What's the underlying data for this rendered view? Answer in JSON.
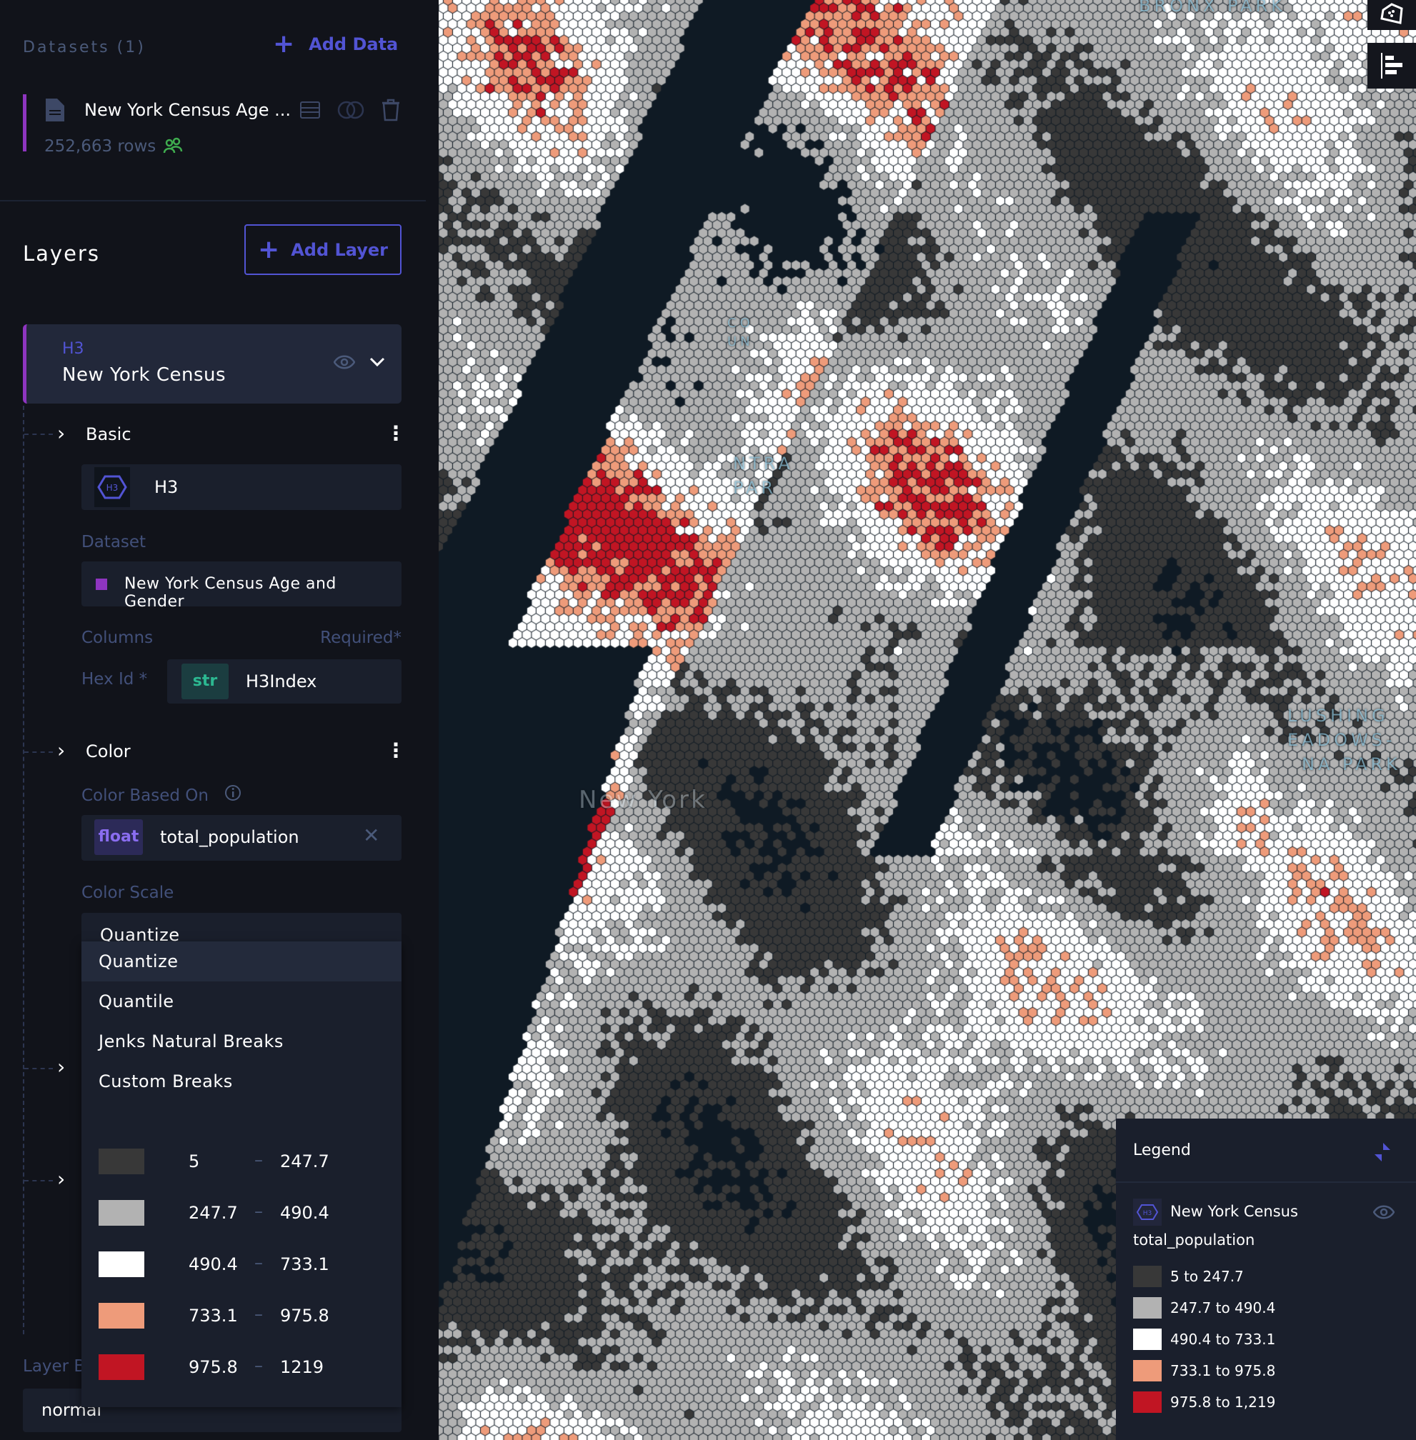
{
  "datasets": {
    "header": "Datasets (1)",
    "add_data_label": "Add Data",
    "items": [
      {
        "name": "New York Census Age ...",
        "rows": "252,663 rows",
        "color": "#8e35c0"
      }
    ]
  },
  "layers": {
    "header": "Layers",
    "add_layer_label": "Add Layer",
    "layer": {
      "type": "H3",
      "name": "New York Census",
      "basic": {
        "section_label": "Basic",
        "layer_type": "H3",
        "layer_type_icon_text": "H3",
        "dataset_label": "Dataset",
        "dataset_value": "New York Census Age and Gender",
        "columns_label": "Columns",
        "required_label": "Required*",
        "hex_id_label": "Hex Id *",
        "hex_id_type": "str",
        "hex_id_value": "H3Index"
      },
      "color": {
        "section_label": "Color",
        "color_based_on_label": "Color Based On",
        "field_type": "float",
        "field_value": "total_population",
        "color_scale_label": "Color Scale",
        "color_scale_value": "Quantize",
        "scale_options": [
          "Quantize",
          "Quantile",
          "Jenks Natural Breaks",
          "Custom Breaks"
        ],
        "breaks": [
          {
            "from": "5",
            "to": "247.7",
            "color": "#383838"
          },
          {
            "from": "247.7",
            "to": "490.4",
            "color": "#b2b2b2"
          },
          {
            "from": "490.4",
            "to": "733.1",
            "color": "#ffffff"
          },
          {
            "from": "733.1",
            "to": "975.8",
            "color": "#ee9b7a"
          },
          {
            "from": "975.8",
            "to": "1219",
            "color": "#c11523"
          }
        ]
      },
      "blend_label": "Layer B",
      "blend_value": "normal"
    }
  },
  "legend": {
    "title": "Legend",
    "layer_name": "New York Census",
    "layer_icon_text": "H3",
    "field": "total_population",
    "items": [
      {
        "label": "5 to 247.7",
        "color": "#383838"
      },
      {
        "label": "247.7 to 490.4",
        "color": "#b2b2b2"
      },
      {
        "label": "490.4 to 733.1",
        "color": "#ffffff"
      },
      {
        "label": "733.1 to 975.8",
        "color": "#ee9b7a"
      },
      {
        "label": "975.8 to 1,219",
        "color": "#c11523"
      }
    ]
  },
  "map": {
    "labels": {
      "bronx": "BRONX PARK",
      "columbia": "CO UN",
      "central": "NTRA PAR",
      "flushing1": "LUSHING",
      "flushing2": "EADOWS-",
      "flushing3": "NA PARK",
      "city": "New York"
    },
    "accent": "#5254d4"
  }
}
